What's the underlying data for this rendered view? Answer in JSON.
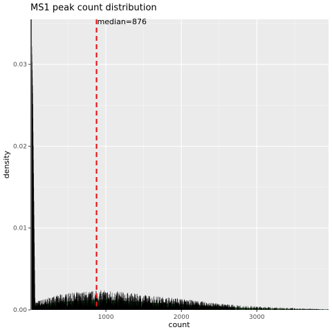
{
  "chart_data": {
    "type": "histogram",
    "title": "MS1 peak count distribution",
    "xlabel": "count",
    "ylabel": "density",
    "xlim": [
      0,
      3950
    ],
    "ylim": [
      0,
      0.0355
    ],
    "x_ticks": [
      1000,
      2000,
      3000
    ],
    "x_tick_labels": [
      "1000",
      "2000",
      "3000"
    ],
    "y_ticks": [
      0.0,
      0.01,
      0.02,
      0.03
    ],
    "y_tick_labels": [
      "0.00",
      "0.01",
      "0.02",
      "0.03"
    ],
    "grid": true,
    "median": 876,
    "median_label": "median=876",
    "median_line_color": "#e31a1c",
    "bar_color": "#000000",
    "density_fill_color": "#1b5e20",
    "profile": [
      {
        "x": 10,
        "density": 0.0355
      },
      {
        "x": 30,
        "density": 0.026
      },
      {
        "x": 60,
        "density": 0.0006
      },
      {
        "x": 200,
        "density": 0.0008
      },
      {
        "x": 400,
        "density": 0.0011
      },
      {
        "x": 700,
        "density": 0.0013
      },
      {
        "x": 1000,
        "density": 0.0014
      },
      {
        "x": 1300,
        "density": 0.0012
      },
      {
        "x": 1600,
        "density": 0.001
      },
      {
        "x": 2000,
        "density": 0.0008
      },
      {
        "x": 2400,
        "density": 0.0005
      },
      {
        "x": 2800,
        "density": 0.0003
      },
      {
        "x": 3200,
        "density": 0.0002
      },
      {
        "x": 3600,
        "density": 0.0001
      },
      {
        "x": 3950,
        "density": 5e-05
      }
    ]
  }
}
